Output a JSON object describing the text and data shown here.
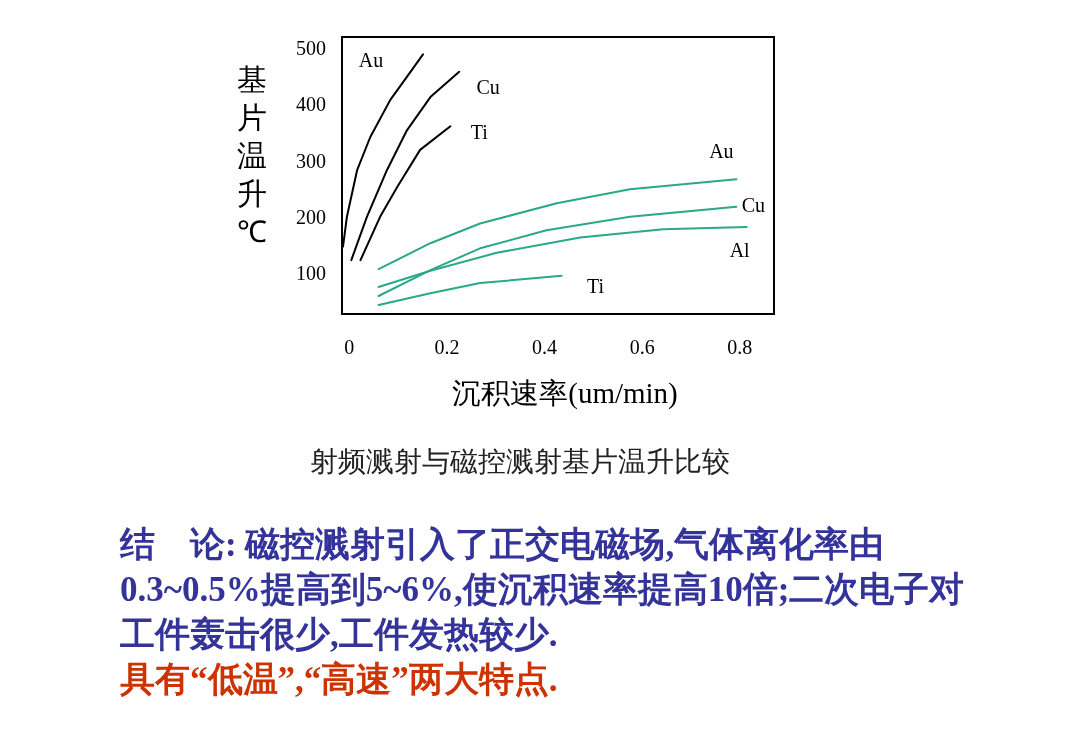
{
  "chart_data": {
    "type": "line",
    "xlabel": "沉积速率(um/min)",
    "ylabel": "基片温升℃",
    "xlim": [
      -0.015,
      0.87
    ],
    "ylim": [
      27,
      520
    ],
    "xticks": [
      0,
      0.2,
      0.4,
      0.6,
      0.8
    ],
    "yticks": [
      100,
      200,
      300,
      400,
      500
    ],
    "grid": false,
    "marker": "none",
    "line_style": "solid",
    "series": [
      {
        "name": "Au",
        "color": "#000000",
        "x": [
          -0.013,
          -0.005,
          0.016,
          0.043,
          0.084,
          0.118,
          0.151
        ],
        "values": [
          147,
          200,
          283,
          342,
          408,
          449,
          489
        ]
      },
      {
        "name": "Cu",
        "color": "#000000",
        "x": [
          0.004,
          0.036,
          0.077,
          0.118,
          0.166,
          0.225
        ],
        "values": [
          123,
          200,
          283,
          354,
          413,
          458
        ]
      },
      {
        "name": "Ti",
        "color": "#000000",
        "x": [
          0.023,
          0.063,
          0.098,
          0.145,
          0.207
        ],
        "values": [
          123,
          200,
          253,
          319,
          361
        ]
      },
      {
        "name": "Au",
        "color": "#2aa88a",
        "x": [
          0.06,
          0.166,
          0.268,
          0.425,
          0.575,
          0.793
        ],
        "values": [
          107,
          153,
          188,
          224,
          249,
          267
        ]
      },
      {
        "name": "Cu",
        "color": "#2aa88a",
        "x": [
          0.06,
          0.166,
          0.268,
          0.404,
          0.575,
          0.793
        ],
        "values": [
          59,
          105,
          144,
          176,
          200,
          218
        ]
      },
      {
        "name": "Al",
        "color": "#2aa88a",
        "x": [
          0.06,
          0.166,
          0.302,
          0.473,
          0.643,
          0.814
        ],
        "values": [
          75,
          104,
          136,
          163,
          178,
          182
        ]
      },
      {
        "name": "Ti",
        "color": "#2aa88a",
        "x": [
          0.06,
          0.166,
          0.268,
          0.435
        ],
        "values": [
          43,
          64,
          82,
          95
        ]
      }
    ],
    "annotations": [
      "射频溅射与磁控溅射基片温升比较",
      "**结　论: 磁控溅射引入了正交电磁场,气体离化率由0.3~0.5%提高到5~6%,使沉积速率提高10倍;二次电子对工件轰击很少,工件发热较少.**",
      "**具有“低温”,“高速”两大特点.**"
    ]
  }
}
